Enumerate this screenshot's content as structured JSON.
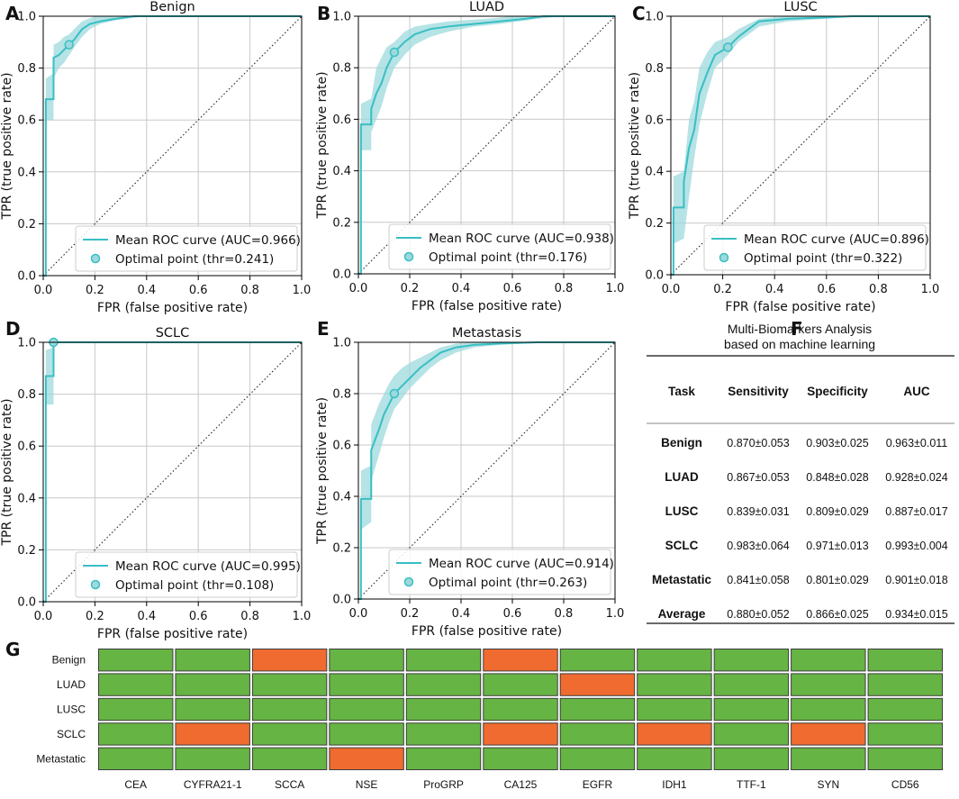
{
  "colors": {
    "curve": "#38bfc4",
    "band": "#9dd9dc",
    "grid": "#c8c8c8",
    "heat_green": "#66b444",
    "heat_orange": "#ef6b2f"
  },
  "chart_data": [
    {
      "type": "line",
      "panel": "A",
      "title": "Benign",
      "xlabel": "FPR (false positive rate)",
      "ylabel": "TPR (true positive rate)",
      "xlim": [
        0,
        1
      ],
      "ylim": [
        0,
        1
      ],
      "xticks": [
        "0.0",
        "0.2",
        "0.4",
        "0.6",
        "0.8",
        "1.0"
      ],
      "yticks": [
        "0.0",
        "0.2",
        "0.4",
        "0.6",
        "0.8",
        "1.0"
      ],
      "legend_loc": "lower-right",
      "legend_curve": "Mean ROC curve (AUC=0.966)",
      "legend_point": "Optimal point (thr=0.241)",
      "roc": [
        [
          0,
          0
        ],
        [
          0.01,
          0
        ],
        [
          0.01,
          0.68
        ],
        [
          0.04,
          0.68
        ],
        [
          0.04,
          0.84
        ],
        [
          0.06,
          0.85
        ],
        [
          0.08,
          0.87
        ],
        [
          0.1,
          0.89
        ],
        [
          0.12,
          0.91
        ],
        [
          0.15,
          0.95
        ],
        [
          0.18,
          0.97
        ],
        [
          0.22,
          0.98
        ],
        [
          0.28,
          0.99
        ],
        [
          0.35,
          1
        ],
        [
          1,
          1
        ]
      ],
      "band_lower": [
        [
          0,
          0
        ],
        [
          0.01,
          0
        ],
        [
          0.01,
          0.6
        ],
        [
          0.04,
          0.6
        ],
        [
          0.04,
          0.76
        ],
        [
          0.06,
          0.8
        ],
        [
          0.08,
          0.82
        ],
        [
          0.1,
          0.85
        ],
        [
          0.12,
          0.88
        ],
        [
          0.15,
          0.92
        ],
        [
          0.18,
          0.95
        ],
        [
          0.22,
          0.97
        ],
        [
          0.28,
          0.985
        ],
        [
          0.4,
          1
        ],
        [
          1,
          1
        ]
      ],
      "band_upper": [
        [
          0,
          0
        ],
        [
          0.01,
          0
        ],
        [
          0.01,
          0.76
        ],
        [
          0.04,
          0.78
        ],
        [
          0.04,
          0.89
        ],
        [
          0.06,
          0.9
        ],
        [
          0.08,
          0.92
        ],
        [
          0.1,
          0.93
        ],
        [
          0.12,
          0.95
        ],
        [
          0.15,
          0.98
        ],
        [
          0.2,
          1
        ],
        [
          1,
          1
        ]
      ],
      "optimal_point": [
        0.1,
        0.89
      ]
    },
    {
      "type": "line",
      "panel": "B",
      "title": "LUAD",
      "xlabel": "FPR (false positive rate)",
      "ylabel": "TPR (true positive rate)",
      "xlim": [
        0,
        1
      ],
      "ylim": [
        0,
        1
      ],
      "xticks": [
        "0.0",
        "0.2",
        "0.4",
        "0.6",
        "0.8",
        "1.0"
      ],
      "yticks": [
        "0.0",
        "0.2",
        "0.4",
        "0.6",
        "0.8",
        "1.0"
      ],
      "legend_loc": "lower-right",
      "legend_curve": "Mean ROC curve (AUC=0.938)",
      "legend_point": "Optimal point (thr=0.176)",
      "roc": [
        [
          0,
          0
        ],
        [
          0.01,
          0
        ],
        [
          0.01,
          0.58
        ],
        [
          0.05,
          0.58
        ],
        [
          0.05,
          0.64
        ],
        [
          0.07,
          0.7
        ],
        [
          0.09,
          0.74
        ],
        [
          0.11,
          0.8
        ],
        [
          0.14,
          0.86
        ],
        [
          0.18,
          0.9
        ],
        [
          0.22,
          0.93
        ],
        [
          0.28,
          0.95
        ],
        [
          0.35,
          0.96
        ],
        [
          0.45,
          0.97
        ],
        [
          0.55,
          0.98
        ],
        [
          0.65,
          0.99
        ],
        [
          0.72,
          1
        ],
        [
          1,
          1
        ]
      ],
      "band_lower": [
        [
          0,
          0
        ],
        [
          0.01,
          0
        ],
        [
          0.01,
          0.48
        ],
        [
          0.05,
          0.48
        ],
        [
          0.05,
          0.55
        ],
        [
          0.07,
          0.6
        ],
        [
          0.09,
          0.65
        ],
        [
          0.11,
          0.72
        ],
        [
          0.14,
          0.8
        ],
        [
          0.18,
          0.85
        ],
        [
          0.22,
          0.89
        ],
        [
          0.28,
          0.92
        ],
        [
          0.35,
          0.94
        ],
        [
          0.45,
          0.96
        ],
        [
          0.55,
          0.97
        ],
        [
          0.7,
          0.99
        ],
        [
          0.8,
          1
        ],
        [
          1,
          1
        ]
      ],
      "band_upper": [
        [
          0,
          0
        ],
        [
          0.01,
          0
        ],
        [
          0.01,
          0.66
        ],
        [
          0.05,
          0.68
        ],
        [
          0.07,
          0.8
        ],
        [
          0.09,
          0.84
        ],
        [
          0.11,
          0.88
        ],
        [
          0.14,
          0.9
        ],
        [
          0.18,
          0.94
        ],
        [
          0.22,
          0.96
        ],
        [
          0.28,
          0.97
        ],
        [
          0.35,
          0.98
        ],
        [
          0.5,
          0.99
        ],
        [
          0.6,
          1
        ],
        [
          1,
          1
        ]
      ],
      "optimal_point": [
        0.14,
        0.86
      ]
    },
    {
      "type": "line",
      "panel": "C",
      "title": "LUSC",
      "xlabel": "FPR (false positive rate)",
      "ylabel": "TPR (true positive rate)",
      "xlim": [
        0,
        1
      ],
      "ylim": [
        0,
        1
      ],
      "xticks": [
        "0.0",
        "0.2",
        "0.4",
        "0.6",
        "0.8",
        "1.0"
      ],
      "yticks": [
        "0.0",
        "0.2",
        "0.4",
        "0.6",
        "0.8",
        "1.0"
      ],
      "legend_loc": "lower-right",
      "legend_curve": "Mean ROC curve (AUC=0.896)",
      "legend_point": "Optimal point (thr=0.322)",
      "roc": [
        [
          0,
          0
        ],
        [
          0.01,
          0
        ],
        [
          0.01,
          0.26
        ],
        [
          0.05,
          0.26
        ],
        [
          0.05,
          0.36
        ],
        [
          0.07,
          0.49
        ],
        [
          0.09,
          0.56
        ],
        [
          0.11,
          0.7
        ],
        [
          0.14,
          0.78
        ],
        [
          0.17,
          0.85
        ],
        [
          0.22,
          0.88
        ],
        [
          0.26,
          0.92
        ],
        [
          0.3,
          0.95
        ],
        [
          0.34,
          0.98
        ],
        [
          0.45,
          0.99
        ],
        [
          0.6,
          0.995
        ],
        [
          0.7,
          1
        ],
        [
          1,
          1
        ]
      ],
      "band_lower": [
        [
          0,
          0
        ],
        [
          0.01,
          0
        ],
        [
          0.01,
          0.12
        ],
        [
          0.05,
          0.14
        ],
        [
          0.07,
          0.3
        ],
        [
          0.09,
          0.45
        ],
        [
          0.11,
          0.58
        ],
        [
          0.14,
          0.7
        ],
        [
          0.17,
          0.8
        ],
        [
          0.22,
          0.85
        ],
        [
          0.26,
          0.9
        ],
        [
          0.3,
          0.93
        ],
        [
          0.34,
          0.96
        ],
        [
          0.45,
          0.98
        ],
        [
          0.6,
          0.99
        ],
        [
          0.75,
          1
        ],
        [
          1,
          1
        ]
      ],
      "band_upper": [
        [
          0,
          0
        ],
        [
          0.01,
          0
        ],
        [
          0.01,
          0.38
        ],
        [
          0.05,
          0.4
        ],
        [
          0.07,
          0.6
        ],
        [
          0.09,
          0.67
        ],
        [
          0.11,
          0.8
        ],
        [
          0.14,
          0.86
        ],
        [
          0.17,
          0.9
        ],
        [
          0.22,
          0.92
        ],
        [
          0.26,
          0.95
        ],
        [
          0.3,
          0.97
        ],
        [
          0.34,
          0.99
        ],
        [
          0.45,
          1
        ],
        [
          1,
          1
        ]
      ],
      "optimal_point": [
        0.22,
        0.88
      ]
    },
    {
      "type": "line",
      "panel": "D",
      "title": "SCLC",
      "xlabel": "FPR (false positive rate)",
      "ylabel": "TPR (true positive rate)",
      "xlim": [
        0,
        1
      ],
      "ylim": [
        0,
        1
      ],
      "xticks": [
        "0.0",
        "0.2",
        "0.4",
        "0.6",
        "0.8",
        "1.0"
      ],
      "yticks": [
        "0.0",
        "0.2",
        "0.4",
        "0.6",
        "0.8",
        "1.0"
      ],
      "legend_loc": "lower-right",
      "legend_curve": "Mean ROC curve (AUC=0.995)",
      "legend_point": "Optimal point (thr=0.108)",
      "roc": [
        [
          0,
          0
        ],
        [
          0.01,
          0
        ],
        [
          0.01,
          0.87
        ],
        [
          0.04,
          0.87
        ],
        [
          0.04,
          1
        ],
        [
          1,
          1
        ]
      ],
      "band_lower": [
        [
          0,
          0
        ],
        [
          0.01,
          0
        ],
        [
          0.01,
          0.76
        ],
        [
          0.04,
          0.76
        ],
        [
          0.04,
          1
        ],
        [
          1,
          1
        ]
      ],
      "band_upper": [
        [
          0,
          0
        ],
        [
          0.01,
          0
        ],
        [
          0.01,
          0.97
        ],
        [
          0.04,
          0.98
        ],
        [
          0.04,
          1
        ],
        [
          1,
          1
        ]
      ],
      "optimal_point": [
        0.04,
        1.0
      ]
    },
    {
      "type": "line",
      "panel": "E",
      "title": "Metastasis",
      "xlabel": "FPR (false positive rate)",
      "ylabel": "TPR (true positive rate)",
      "xlim": [
        0,
        1
      ],
      "ylim": [
        0,
        1
      ],
      "xticks": [
        "0.0",
        "0.2",
        "0.4",
        "0.6",
        "0.8",
        "1.0"
      ],
      "yticks": [
        "0.0",
        "0.2",
        "0.4",
        "0.6",
        "0.8",
        "1.0"
      ],
      "legend_loc": "lower-right",
      "legend_curve": "Mean ROC curve (AUC=0.914)",
      "legend_point": "Optimal point (thr=0.263)",
      "roc": [
        [
          0,
          0
        ],
        [
          0.01,
          0
        ],
        [
          0.01,
          0.39
        ],
        [
          0.05,
          0.39
        ],
        [
          0.05,
          0.58
        ],
        [
          0.08,
          0.66
        ],
        [
          0.1,
          0.72
        ],
        [
          0.12,
          0.76
        ],
        [
          0.14,
          0.8
        ],
        [
          0.17,
          0.83
        ],
        [
          0.2,
          0.86
        ],
        [
          0.24,
          0.9
        ],
        [
          0.28,
          0.93
        ],
        [
          0.32,
          0.96
        ],
        [
          0.38,
          0.98
        ],
        [
          0.45,
          0.99
        ],
        [
          0.55,
          0.995
        ],
        [
          0.7,
          1
        ],
        [
          1,
          1
        ]
      ],
      "band_lower": [
        [
          0,
          0
        ],
        [
          0.01,
          0
        ],
        [
          0.01,
          0.27
        ],
        [
          0.05,
          0.3
        ],
        [
          0.05,
          0.46
        ],
        [
          0.08,
          0.56
        ],
        [
          0.1,
          0.63
        ],
        [
          0.12,
          0.69
        ],
        [
          0.14,
          0.74
        ],
        [
          0.17,
          0.78
        ],
        [
          0.2,
          0.82
        ],
        [
          0.24,
          0.86
        ],
        [
          0.28,
          0.9
        ],
        [
          0.32,
          0.93
        ],
        [
          0.38,
          0.96
        ],
        [
          0.45,
          0.98
        ],
        [
          0.55,
          0.99
        ],
        [
          0.75,
          1
        ],
        [
          1,
          1
        ]
      ],
      "band_upper": [
        [
          0,
          0
        ],
        [
          0.01,
          0
        ],
        [
          0.01,
          0.5
        ],
        [
          0.05,
          0.52
        ],
        [
          0.05,
          0.68
        ],
        [
          0.08,
          0.76
        ],
        [
          0.1,
          0.8
        ],
        [
          0.12,
          0.84
        ],
        [
          0.14,
          0.87
        ],
        [
          0.17,
          0.9
        ],
        [
          0.2,
          0.92
        ],
        [
          0.24,
          0.94
        ],
        [
          0.28,
          0.96
        ],
        [
          0.32,
          0.98
        ],
        [
          0.38,
          0.995
        ],
        [
          0.45,
          1
        ],
        [
          1,
          1
        ]
      ],
      "optimal_point": [
        0.14,
        0.8
      ]
    },
    {
      "type": "table",
      "panel": "F",
      "title_line1": "Multi-Biomarkers Analysis",
      "title_line2": "based on machine learning",
      "columns": [
        "Task",
        "Sensitivity",
        "Specificity",
        "AUC"
      ],
      "rows": [
        [
          "Benign",
          "0.870±0.053",
          "0.903±0.025",
          "0.963±0.011"
        ],
        [
          "LUAD",
          "0.867±0.053",
          "0.848±0.028",
          "0.928±0.024"
        ],
        [
          "LUSC",
          "0.839±0.031",
          "0.809±0.029",
          "0.887±0.017"
        ],
        [
          "SCLC",
          "0.983±0.064",
          "0.971±0.013",
          "0.993±0.004"
        ],
        [
          "Metastatic",
          "0.841±0.058",
          "0.801±0.029",
          "0.901±0.018"
        ],
        [
          "Average",
          "0.880±0.052",
          "0.866±0.025",
          "0.934±0.015"
        ]
      ]
    },
    {
      "type": "heatmap",
      "panel": "G",
      "rows": [
        "Benign",
        "LUAD",
        "LUSC",
        "SCLC",
        "Metastatic"
      ],
      "columns": [
        "CEA",
        "CYFRA21-1",
        "SCCA",
        "NSE",
        "ProGRP",
        "CA125",
        "EGFR",
        "IDH1",
        "TTF-1",
        "SYN",
        "CD56"
      ],
      "values": [
        [
          0,
          0,
          1,
          0,
          0,
          1,
          0,
          0,
          0,
          0,
          0
        ],
        [
          0,
          0,
          0,
          0,
          0,
          0,
          1,
          0,
          0,
          0,
          0
        ],
        [
          0,
          0,
          0,
          0,
          0,
          0,
          0,
          0,
          0,
          0,
          0
        ],
        [
          0,
          1,
          0,
          0,
          0,
          1,
          0,
          1,
          0,
          1,
          0
        ],
        [
          0,
          0,
          0,
          1,
          0,
          0,
          0,
          0,
          0,
          0,
          0
        ]
      ]
    }
  ]
}
